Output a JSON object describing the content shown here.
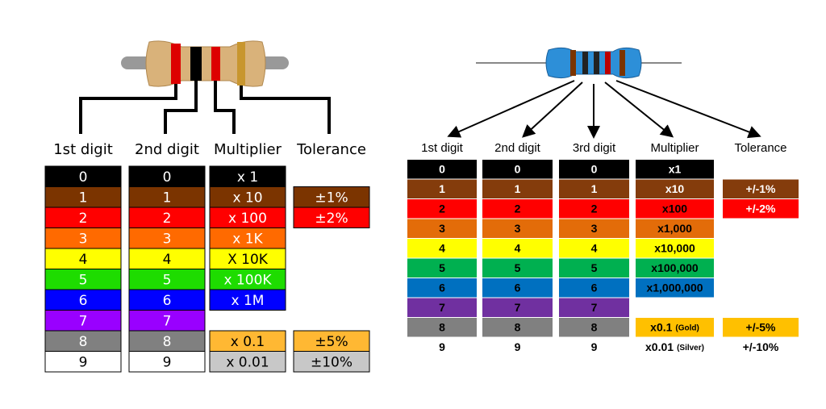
{
  "left": {
    "headers": [
      "1st digit",
      "2nd digit",
      "Multiplier",
      "Tolerance"
    ],
    "digits": [
      "0",
      "1",
      "2",
      "3",
      "4",
      "5",
      "6",
      "7",
      "8",
      "9"
    ],
    "multiplier": [
      "x 1",
      "x 10",
      "x 100",
      "x 1K",
      "X 10K",
      "x 100K",
      "x 1M",
      "x 0.1",
      "x 0.01"
    ],
    "tolerance": [
      "±1%",
      "±2%",
      "±5%",
      "±10%"
    ]
  },
  "right": {
    "headers": [
      "1st digit",
      "2nd digit",
      "3rd digit",
      "Multiplier",
      "Tolerance"
    ],
    "digits": [
      "0",
      "1",
      "2",
      "3",
      "4",
      "5",
      "6",
      "7",
      "8",
      "9"
    ],
    "multiplier": [
      "x1",
      "x10",
      "x100",
      "x1,000",
      "x10,000",
      "x100,000",
      "x1,000,000"
    ],
    "multiplier_extra": [
      {
        "text": "x0.1",
        "material": "(Gold)"
      },
      {
        "text": "x0.01",
        "material": "(Silver)"
      }
    ],
    "tolerance": [
      "+/-1%",
      "+/-2%",
      "+/-5%",
      "+/-10%"
    ]
  }
}
